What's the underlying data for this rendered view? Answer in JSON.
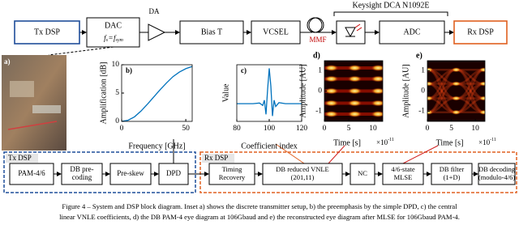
{
  "diagram": {
    "top_nodes": [
      {
        "lines": [
          "Tx DSP"
        ]
      },
      {
        "lines": [
          "DAC"
        ]
      },
      {
        "lines": [
          "Bias T"
        ]
      },
      {
        "lines": [
          "VCSEL"
        ]
      },
      {
        "lines": [
          "ADC"
        ]
      },
      {
        "lines": [
          "Rx DSP"
        ]
      }
    ],
    "dac_formula": [
      "f",
      "s",
      "=",
      "f",
      "sym"
    ],
    "amplifier_label": "DA",
    "fiber_label": "MMF",
    "receiver_label": "Keysight DCA N1092E",
    "tx_group": {
      "title": "Tx DSP",
      "nodes": [
        {
          "lines": [
            "PAM-4/6"
          ]
        },
        {
          "lines": [
            "DB pre-",
            "coding"
          ]
        },
        {
          "lines": [
            "Pre-skew"
          ]
        },
        {
          "lines": [
            "DPD"
          ]
        }
      ]
    },
    "rx_group": {
      "title": "Rx DSP",
      "nodes": [
        {
          "lines": [
            "Timing",
            "Recovery"
          ]
        },
        {
          "lines": [
            "DB reduced VNLE",
            "(201,11)"
          ]
        },
        {
          "lines": [
            "NC"
          ]
        },
        {
          "lines": [
            "4/6-state",
            "MLSE"
          ]
        },
        {
          "lines": [
            "DB filter",
            "(1+D)"
          ]
        },
        {
          "lines": [
            "DB decoding",
            "(modulo-4/6)"
          ]
        }
      ]
    }
  },
  "photo": {
    "panel_label": "a)"
  },
  "chart_data": [
    {
      "type": "line",
      "panel_label": "b)",
      "x_label": "Frequency [GHz]",
      "y_label": "Amplification [dB]",
      "x": [
        0,
        5,
        10,
        15,
        20,
        25,
        30,
        35,
        40,
        45,
        50,
        55
      ],
      "values": [
        0,
        0.2,
        0.8,
        1.8,
        3,
        4.3,
        5.6,
        6.8,
        7.9,
        8.7,
        9.3,
        9.7
      ],
      "color": "#0072bd",
      "xlim": [
        0,
        55
      ],
      "ylim": [
        0,
        10
      ],
      "xticks": [
        0,
        50
      ],
      "yticks": [
        0,
        5,
        10
      ]
    },
    {
      "type": "line",
      "panel_label": "c)",
      "x_label": "Coefficient index",
      "y_label": "Value",
      "x": [
        80,
        90,
        94,
        96,
        97,
        98,
        99,
        100,
        101,
        102,
        103,
        104,
        106,
        110,
        120
      ],
      "values": [
        0,
        0,
        0.02,
        -0.05,
        0.1,
        -0.3,
        0.4,
        1,
        0.5,
        -0.35,
        0.1,
        -0.08,
        0.03,
        0,
        0
      ],
      "color": "#0072bd",
      "xlim": [
        80,
        120
      ],
      "ylim": [
        -0.5,
        1.1
      ],
      "xticks": [
        80,
        100,
        120
      ]
    },
    {
      "type": "eye",
      "style": "db",
      "panel_label": "d)",
      "x_label": "Time [s]",
      "y_label": "Amplitude [AU]",
      "x_scale": {
        "base": "×10",
        "exponent": "-11"
      },
      "xlim": [
        0,
        12
      ],
      "ylim": [
        -1.5,
        1.5
      ],
      "xticks": [
        0,
        5,
        10
      ],
      "yticks": [
        -1,
        0,
        1
      ]
    },
    {
      "type": "eye",
      "style": "pam",
      "panel_label": "e)",
      "x_label": "Time [s]",
      "y_label": "Amplitude [AU]",
      "x_scale": {
        "base": "×10",
        "exponent": "-11"
      },
      "xlim": [
        0,
        12
      ],
      "ylim": [
        -1.5,
        1.5
      ],
      "xticks": [
        0,
        5,
        10
      ],
      "yticks": [
        -1,
        0,
        1
      ]
    }
  ],
  "caption": [
    "Figure 4 – System and DSP block diagram. Inset a) shows the discrete transmitter setup, b) the preemphasis by the simple DPD, c) the central",
    "linear VNLE coefficients, d) the DB PAM-4 eye diagram at 106Gbaud and e) the reconstructed eye diagram after MLSE for 106Gbaud PAM-4."
  ]
}
